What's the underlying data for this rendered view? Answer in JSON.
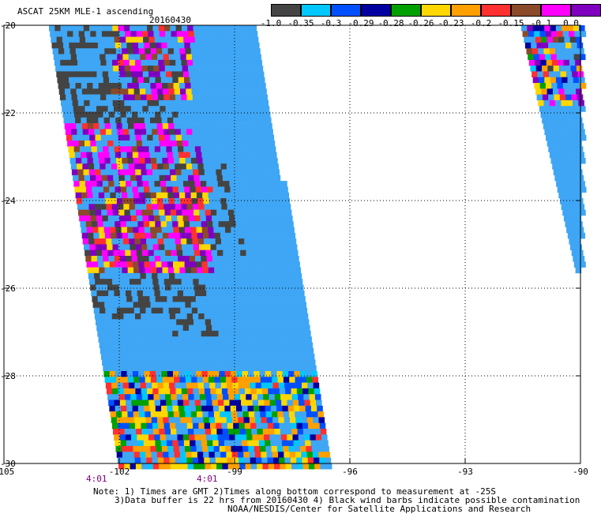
{
  "header": {
    "title": "ASCAT 25KM MLE-1 ascending",
    "date": "20160430"
  },
  "colorbar": {
    "colors": [
      "#444444",
      "#00c8ff",
      "#0050ff",
      "#0000a0",
      "#00a000",
      "#ffd700",
      "#ffa000",
      "#ff3030",
      "#8b4a2a",
      "#ff00ff",
      "#8000c0"
    ],
    "labels": [
      "-1.0",
      "-0.35",
      "-0.3",
      "-0.29",
      "-0.28",
      "-0.26",
      "-0.23",
      "-0.2",
      "-0.15",
      "-0.1",
      "0.0"
    ]
  },
  "axes": {
    "y_ticks": [
      "-20",
      "-22",
      "-24",
      "-26",
      "-28",
      "-30"
    ],
    "x_ticks": [
      "-105",
      "-102",
      "-99",
      "-96",
      "-93",
      "-90"
    ],
    "time_labels": [
      "4:01",
      "4:01"
    ]
  },
  "map": {
    "swath_color": "#3ea6f5",
    "missing_color": "#444444"
  },
  "notes": {
    "line1": "Note: 1) Times are GMT 2)Times along bottom correspond to measurement at -25S",
    "line2": "3)Data buffer is 22 hrs from 20160430 4) Black wind barbs indicate possible contamination",
    "line3": "NOAA/NESDIS/Center for Satellite Applications and Research"
  }
}
